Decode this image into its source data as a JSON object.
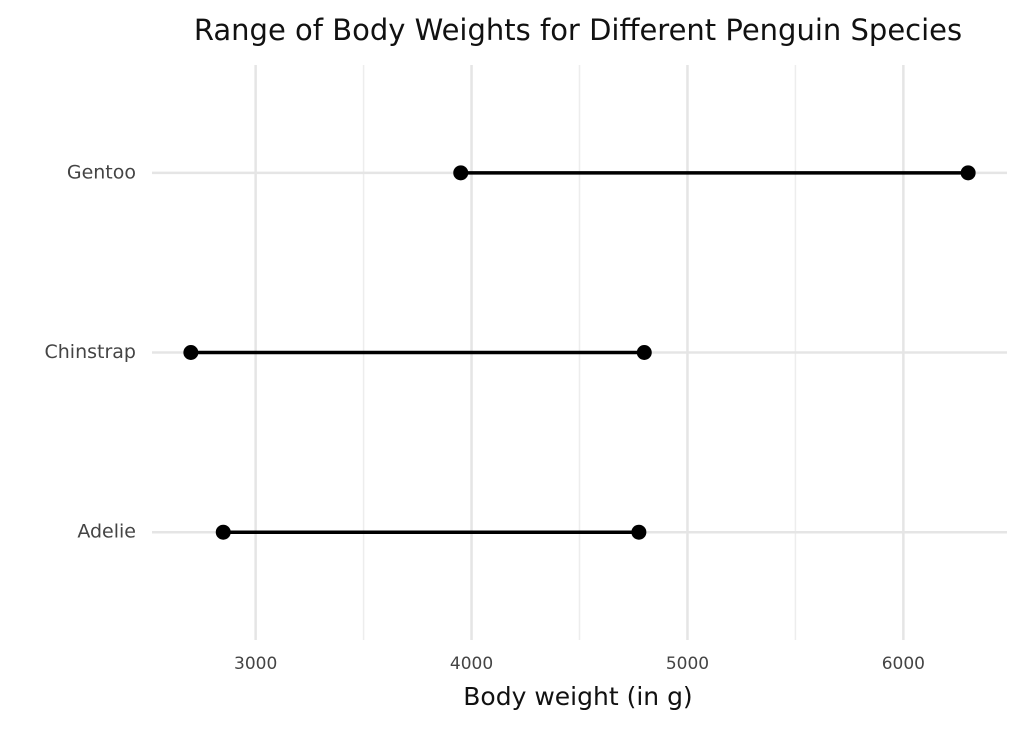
{
  "chart_data": {
    "type": "dumbbell",
    "title": "Range of Body Weights for Different Penguin Species",
    "x_label": "Body weight (in g)",
    "categories": [
      "Adelie",
      "Chinstrap",
      "Gentoo"
    ],
    "values": [
      [
        2850,
        4775
      ],
      [
        2700,
        4800
      ],
      [
        3950,
        6300
      ]
    ],
    "color": "#000000",
    "xlim": [
      2520,
      6480
    ],
    "xticks": [
      3000,
      4000,
      5000,
      6000
    ],
    "minor_xticks": [
      3500,
      4500,
      5500
    ],
    "grid": true
  }
}
